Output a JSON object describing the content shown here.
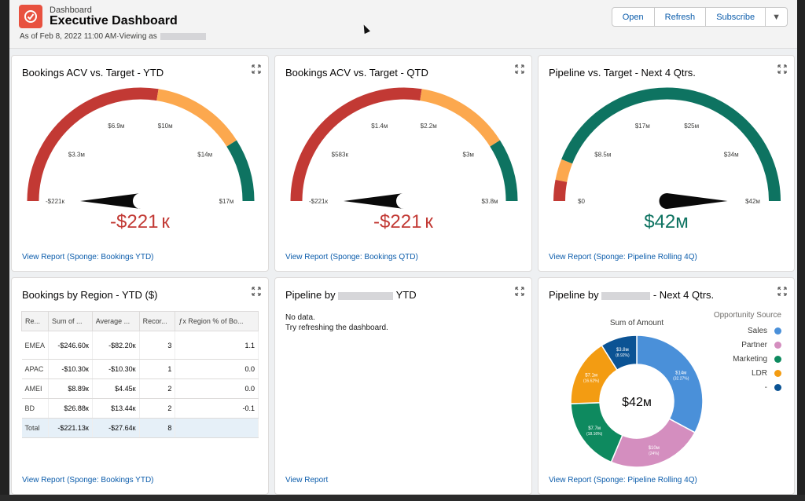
{
  "header": {
    "breadcrumb": "Dashboard",
    "title": "Executive Dashboard",
    "as_of": "As of Feb 8, 2022 11:00 AM·Viewing as",
    "buttons": {
      "open": "Open",
      "refresh": "Refresh",
      "subscribe": "Subscribe"
    }
  },
  "colors": {
    "red": "#c23934",
    "orange": "#fca84e",
    "teal": "#0e7361",
    "blue": "#0b5cab"
  },
  "cards": {
    "g1": {
      "title": "Bookings ACV vs. Target - YTD",
      "value": "-$221 к",
      "link": "View Report (Sponge: Bookings YTD)",
      "labels": [
        "-$221к",
        "$3.3м",
        "$6.9м",
        "$10м",
        "$14м",
        "$17м"
      ],
      "needle_fraction": 0.0
    },
    "g2": {
      "title": "Bookings ACV vs. Target - QTD",
      "value": "-$221 к",
      "link": "View Report (Sponge: Bookings QTD)",
      "labels": [
        "-$221к",
        "$583к",
        "$1.4м",
        "$2.2м",
        "$3м",
        "$3.8м"
      ],
      "needle_fraction": 0.0
    },
    "g3": {
      "title": "Pipeline vs. Target - Next 4 Qtrs.",
      "value": "$42м",
      "link": "View Report (Sponge: Pipeline Rolling 4Q)",
      "labels": [
        "$0",
        "$8.5м",
        "$17м",
        "$25м",
        "$34м",
        "$42м"
      ],
      "needle_fraction": 1.0
    },
    "table": {
      "title": "Bookings by Region - YTD ($)",
      "link": "View Report (Sponge: Bookings YTD)",
      "headers": [
        "Re...",
        "Sum of ...",
        "Average ...",
        "Recor...",
        "ƒx Region % of Bo..."
      ],
      "rows": [
        [
          "EMEA",
          "-$246.60к",
          "-$82.20к",
          "3",
          "1.1"
        ],
        [
          "APAC",
          "-$10.30к",
          "-$10.30к",
          "1",
          "0.0"
        ],
        [
          "AMEI",
          "$8.89к",
          "$4.45к",
          "2",
          "0.0"
        ],
        [
          "BD",
          "$26.88к",
          "$13.44к",
          "2",
          "-0.1"
        ]
      ],
      "total": [
        "Total",
        "-$221.13к",
        "-$27.64к",
        "8",
        ""
      ]
    },
    "pipeline": {
      "title_left": "Pipeline by",
      "title_right": "YTD",
      "no_data": "No data.",
      "hint": "Try refreshing the dashboard.",
      "link": "View Report"
    },
    "donut": {
      "title_left": "Pipeline by",
      "title_right": "- Next 4 Qtrs.",
      "subtitle": "Sum of Amount",
      "center": "$42м",
      "legend_title": "Opportunity Source",
      "link": "View Report (Sponge: Pipeline Rolling 4Q)"
    }
  },
  "chart_data": {
    "type": "pie",
    "title": "Sum of Amount",
    "legend_title": "Opportunity Source",
    "categories": [
      "Sales",
      "Partner",
      "Marketing",
      "LDR",
      "-"
    ],
    "colors": [
      "#4a90d9",
      "#d48ebf",
      "#0e8a5f",
      "#f39c12",
      "#0b5394"
    ],
    "values": [
      14,
      10,
      7.7,
      7.1,
      3.8
    ],
    "value_labels": [
      "$14м",
      "$10м",
      "$7.7м",
      "$7.1м",
      "$3.8м"
    ],
    "percent_labels": [
      "(32.27%)",
      "(24%)",
      "(18.16%)",
      "(16.62%)",
      "(8.92%)"
    ],
    "legend_position": "right"
  }
}
